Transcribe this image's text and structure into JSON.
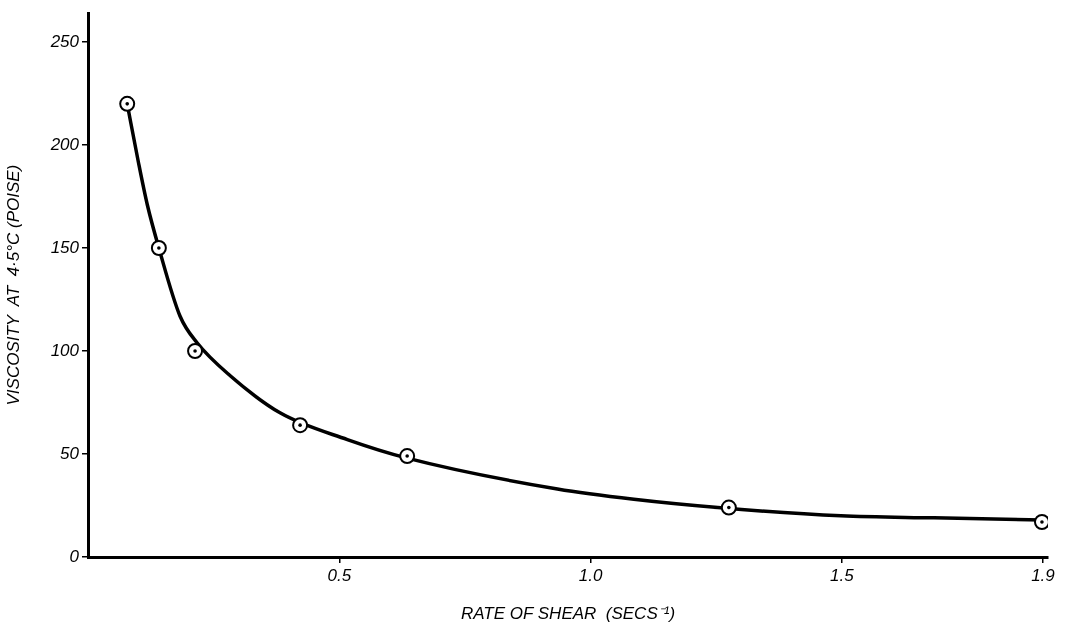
{
  "chart_data": {
    "type": "scatter",
    "xlabel": "RATE OF SHEAR  (SECS⁻¹)",
    "ylabel": "VISCOSITY  AT  4·5°C (POISE)",
    "xlim": [
      0,
      1.91
    ],
    "ylim": [
      0,
      264
    ],
    "xticks": [
      0.5,
      {
        "value": 1.0,
        "label": "1.0"
      },
      1.5,
      1.9
    ],
    "yticks": [
      0,
      50,
      100,
      150,
      200,
      250
    ],
    "grid": false,
    "legend": false,
    "series": [
      {
        "color": "#000000",
        "marker": "circle",
        "x": [
          0.078,
          0.141,
          0.213,
          0.422,
          0.635,
          1.275,
          1.898
        ],
        "values": [
          220,
          150,
          100,
          64,
          49,
          24,
          17
        ]
      },
      {
        "type": "line",
        "color": "#000000",
        "line_style": "solid",
        "marker": "none",
        "x": [
          0.078,
          0.1,
          0.118,
          0.141,
          0.183,
          0.217,
          0.283,
          0.382,
          0.516,
          0.635,
          0.934,
          1.086,
          1.253,
          1.498,
          1.683,
          1.898
        ],
        "values": [
          220,
          192,
          171,
          150,
          117,
          104,
          88,
          70,
          57,
          48,
          33,
          28,
          24,
          20,
          19,
          18
        ]
      }
    ]
  }
}
